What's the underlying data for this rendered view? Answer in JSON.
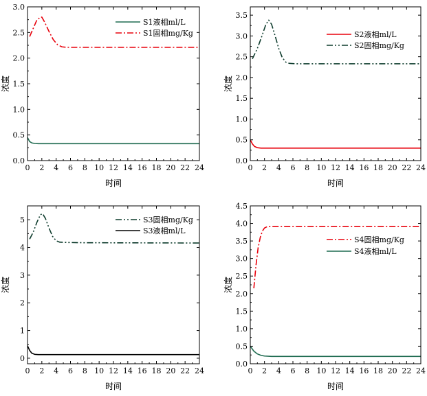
{
  "chart_data": [
    {
      "type": "line",
      "id": "S1",
      "xlabel": "时间",
      "ylabel": "浓度",
      "xlim": [
        0,
        24
      ],
      "ylim": [
        0,
        3.0
      ],
      "xticks": [
        0,
        2,
        4,
        6,
        8,
        10,
        12,
        14,
        16,
        18,
        20,
        22,
        24
      ],
      "yticks": [
        "0.0",
        "0.5",
        "1.0",
        "1.5",
        "2.0",
        "2.5",
        "3.0"
      ],
      "legend": "top-right",
      "series": [
        {
          "name": "S1液相ml/L",
          "color": "#1f6b50",
          "dash": "solid",
          "x": [
            0,
            0.3,
            0.6,
            1.0,
            1.5,
            2,
            3,
            5,
            10,
            24
          ],
          "y": [
            0.45,
            0.37,
            0.345,
            0.335,
            0.33,
            0.33,
            0.33,
            0.33,
            0.33,
            0.33
          ]
        },
        {
          "name": "S1固相mg/Kg",
          "color": "#e8000b",
          "dash": "dashdot",
          "x": [
            0.3,
            0.8,
            1.3,
            1.8,
            2.0,
            2.4,
            3.0,
            3.6,
            4.2,
            4.8,
            5.5,
            7,
            10,
            24
          ],
          "y": [
            2.42,
            2.58,
            2.74,
            2.8,
            2.8,
            2.7,
            2.52,
            2.36,
            2.26,
            2.22,
            2.21,
            2.21,
            2.21,
            2.21
          ]
        }
      ]
    },
    {
      "type": "line",
      "id": "S2",
      "xlabel": "时间",
      "ylabel": "浓度",
      "xlim": [
        0,
        24
      ],
      "ylim": [
        0,
        3.7
      ],
      "xticks": [
        0,
        2,
        4,
        6,
        8,
        10,
        12,
        14,
        16,
        18,
        20,
        22,
        24
      ],
      "yticks": [
        "0.0",
        "0.5",
        "1.0",
        "1.5",
        "2.0",
        "2.5",
        "3.0",
        "3.5"
      ],
      "legend": "top-right",
      "series": [
        {
          "name": "S2液相ml/L",
          "color": "#e8000b",
          "dash": "solid",
          "x": [
            0,
            0.3,
            0.6,
            1.0,
            1.5,
            2,
            3,
            5,
            10,
            24
          ],
          "y": [
            0.5,
            0.4,
            0.34,
            0.31,
            0.3,
            0.3,
            0.3,
            0.3,
            0.3,
            0.3
          ]
        },
        {
          "name": "S2固相mg/Kg",
          "color": "#0d3b2c",
          "dash": "dashdotdot",
          "x": [
            0.3,
            1.0,
            1.6,
            2.2,
            2.6,
            3.0,
            3.5,
            4.0,
            4.5,
            5.0,
            5.5,
            6.5,
            10,
            24
          ],
          "y": [
            2.45,
            2.7,
            2.98,
            3.28,
            3.38,
            3.28,
            3.0,
            2.7,
            2.48,
            2.37,
            2.34,
            2.33,
            2.33,
            2.33
          ]
        }
      ]
    },
    {
      "type": "line",
      "id": "S3",
      "xlabel": "时间",
      "ylabel": "浓度",
      "xlim": [
        0,
        24
      ],
      "ylim": [
        -0.2,
        5.5
      ],
      "xticks": [
        0,
        2,
        4,
        6,
        8,
        10,
        12,
        14,
        16,
        18,
        20,
        22,
        24
      ],
      "yticks": [
        "0",
        "1",
        "2",
        "3",
        "4",
        "5"
      ],
      "legend": "top-right",
      "series": [
        {
          "name": "S3固相mg/Kg",
          "color": "#0d3b2c",
          "dash": "dashdotdot",
          "x": [
            0.3,
            0.8,
            1.3,
            1.8,
            2.1,
            2.5,
            3.0,
            3.5,
            4.0,
            4.5,
            5.5,
            8,
            24
          ],
          "y": [
            4.3,
            4.55,
            4.9,
            5.18,
            5.22,
            5.05,
            4.7,
            4.4,
            4.24,
            4.19,
            4.18,
            4.17,
            4.16
          ]
        },
        {
          "name": "S3液相ml/L",
          "color": "#000000",
          "dash": "solid",
          "x": [
            0,
            0.3,
            0.6,
            1.0,
            1.5,
            2,
            3,
            5,
            10,
            24
          ],
          "y": [
            0.45,
            0.28,
            0.18,
            0.14,
            0.13,
            0.13,
            0.13,
            0.13,
            0.13,
            0.13
          ]
        }
      ]
    },
    {
      "type": "line",
      "id": "S4",
      "xlabel": "时间",
      "ylabel": "浓度",
      "xlim": [
        0,
        24
      ],
      "ylim": [
        0,
        4.5
      ],
      "xticks": [
        0,
        2,
        4,
        6,
        8,
        10,
        12,
        14,
        16,
        18,
        20,
        22,
        24
      ],
      "yticks": [
        "0.0",
        "0.5",
        "1.0",
        "1.5",
        "2.0",
        "2.5",
        "3.0",
        "3.5",
        "4.0",
        "4.5"
      ],
      "legend": "upper-right",
      "series": [
        {
          "name": "S4固相mg/Kg",
          "color": "#e8000b",
          "dash": "dashdot",
          "x": [
            0.5,
            0.8,
            1.1,
            1.4,
            1.7,
            2.0,
            2.4,
            3.0,
            4,
            6,
            10,
            24
          ],
          "y": [
            2.15,
            2.8,
            3.3,
            3.6,
            3.78,
            3.87,
            3.91,
            3.91,
            3.91,
            3.91,
            3.91,
            3.91
          ]
        },
        {
          "name": "S4液相ml/L",
          "color": "#1f6b50",
          "dash": "solid",
          "x": [
            0,
            0.5,
            1.0,
            1.5,
            2.0,
            3.0,
            4,
            6,
            10,
            24
          ],
          "y": [
            0.5,
            0.36,
            0.28,
            0.24,
            0.22,
            0.21,
            0.21,
            0.21,
            0.21,
            0.21
          ]
        }
      ]
    }
  ]
}
